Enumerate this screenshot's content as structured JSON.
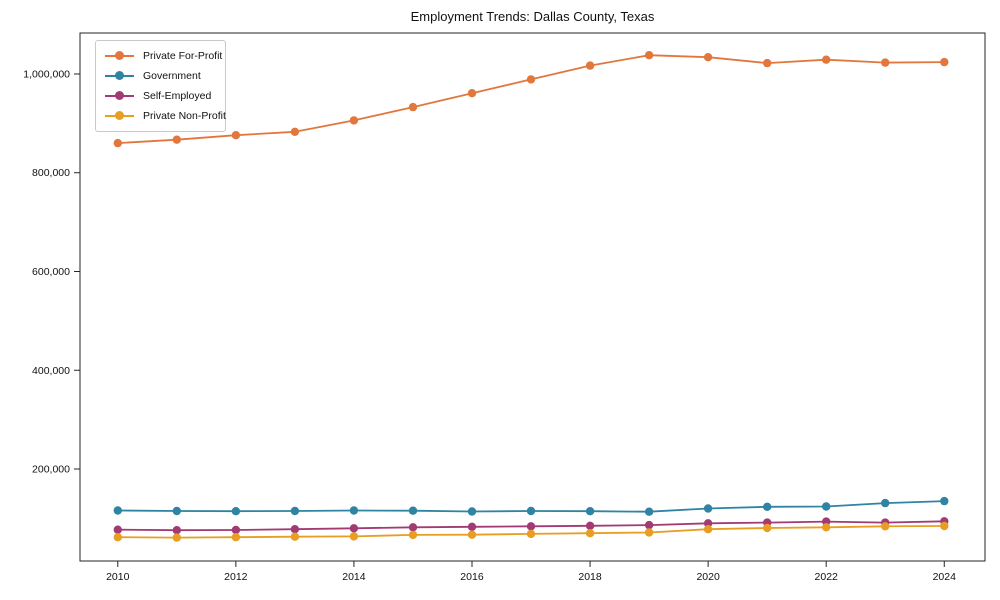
{
  "chart_data": {
    "type": "line",
    "title": "Employment Trends: Dallas County, Texas",
    "xlabel": "",
    "ylabel": "",
    "x": [
      2010,
      2011,
      2012,
      2013,
      2014,
      2015,
      2016,
      2017,
      2018,
      2019,
      2020,
      2021,
      2022,
      2023,
      2024
    ],
    "x_ticks": [
      2010,
      2012,
      2014,
      2016,
      2018,
      2020,
      2022,
      2024
    ],
    "y_ticks": [
      200000,
      400000,
      600000,
      800000,
      1000000
    ],
    "xlim": [
      2009.36,
      2024.69
    ],
    "ylim": [
      13700,
      1083000
    ],
    "grid": false,
    "legend_position": "upper left",
    "series": [
      {
        "name": "Private For-Profit",
        "color": "#E2773E",
        "values": [
          860000,
          867000,
          876000,
          883000,
          906000,
          933000,
          961000,
          989000,
          1017000,
          1038000,
          1034000,
          1022000,
          1029000,
          1023000,
          1024000
        ]
      },
      {
        "name": "Government",
        "color": "#2E84A2",
        "values": [
          116000,
          115000,
          114500,
          115000,
          116000,
          115500,
          114000,
          115000,
          114500,
          113500,
          120000,
          123500,
          124000,
          131000,
          135000
        ]
      },
      {
        "name": "Self-Employed",
        "color": "#A23B74",
        "values": [
          77000,
          76000,
          76500,
          78000,
          80000,
          82000,
          83000,
          84000,
          85000,
          86500,
          90000,
          91500,
          93500,
          91500,
          94000
        ]
      },
      {
        "name": "Private Non-Profit",
        "color": "#E89E22",
        "values": [
          62000,
          61000,
          62000,
          63000,
          63500,
          66500,
          67000,
          68500,
          70000,
          71500,
          78000,
          80500,
          82000,
          84000,
          84500
        ]
      }
    ]
  }
}
